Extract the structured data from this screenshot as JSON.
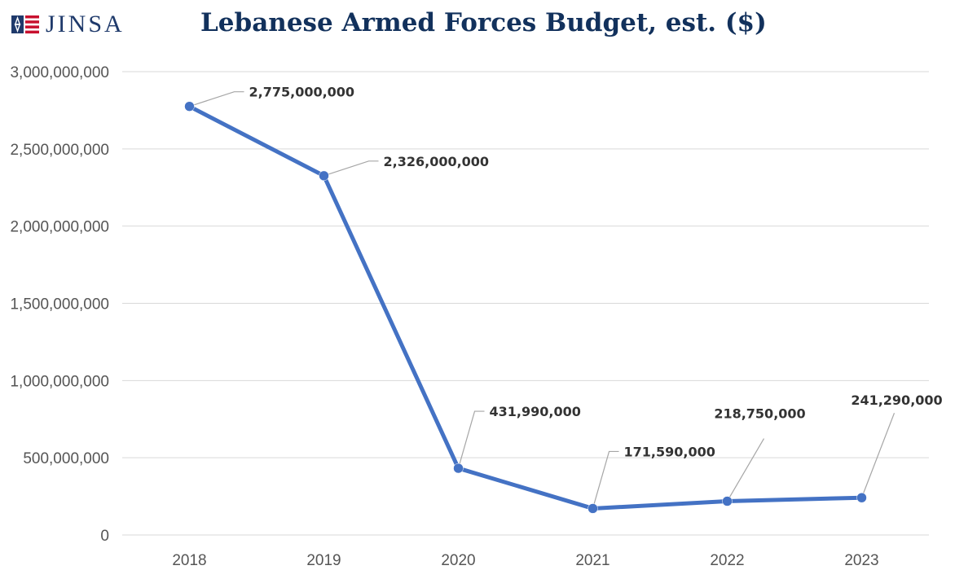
{
  "header": {
    "logo_text": "JINSA",
    "logo_mark": "jinsa-flag-star-logo"
  },
  "chart_data": {
    "type": "line",
    "title": "Lebanese Armed Forces Budget, est. ($)",
    "xlabel": "",
    "ylabel": "",
    "categories": [
      "2018",
      "2019",
      "2020",
      "2021",
      "2022",
      "2023"
    ],
    "series": [
      {
        "values": [
          2775000000,
          2326000000,
          431990000,
          171590000,
          218750000,
          241290000
        ],
        "labels": [
          "2,775,000,000",
          "2,326,000,000",
          "431,990,000",
          "171,590,000",
          "218,750,000",
          "241,290,000"
        ]
      }
    ],
    "ylim": [
      0,
      3000000000
    ],
    "yticks": [
      0,
      500000000,
      1000000000,
      1500000000,
      2000000000,
      2500000000,
      3000000000
    ],
    "ytick_labels": [
      "0",
      "500,000,000",
      "1,000,000,000",
      "1,500,000,000",
      "2,000,000,000",
      "2,500,000,000",
      "3,000,000,000"
    ],
    "grid": true,
    "legend": "none",
    "colors": {
      "line": "#4472c4",
      "grid": "#d9d9d9",
      "leader": "#a6a6a6",
      "title": "#12315c"
    }
  }
}
